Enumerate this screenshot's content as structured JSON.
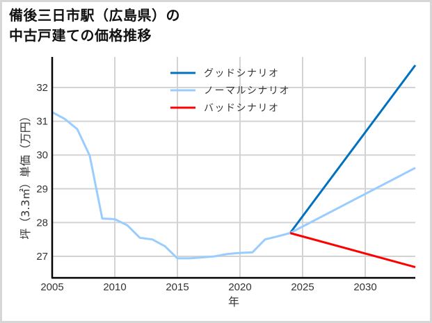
{
  "title": "備後三日市駅（広島県）の\n中古戸建ての価格推移",
  "chart_data": {
    "type": "line",
    "title": "備後三日市駅（広島県）の中古戸建ての価格推移",
    "xlabel": "年",
    "ylabel": "坪（3.3㎡）単価（万円）",
    "xlim": [
      2005,
      2034
    ],
    "ylim": [
      26.36,
      32.9
    ],
    "x_ticks": [
      2005,
      2010,
      2015,
      2020,
      2025,
      2030
    ],
    "y_ticks": [
      27,
      28,
      29,
      30,
      31,
      32
    ],
    "grid": true,
    "legend_position": "upper center",
    "series": [
      {
        "name": "ノーマルシナリオ",
        "role": "historical",
        "color": "#99ccff",
        "x": [
          2005,
          2006,
          2007,
          2008,
          2009,
          2010,
          2011,
          2012,
          2013,
          2014,
          2015,
          2016,
          2017,
          2018,
          2019,
          2020,
          2021,
          2022,
          2023,
          2024
        ],
        "values": [
          31.27,
          31.07,
          30.77,
          29.98,
          28.12,
          28.1,
          27.92,
          27.55,
          27.5,
          27.3,
          26.94,
          26.94,
          26.97,
          27.0,
          27.07,
          27.1,
          27.12,
          27.5,
          27.59,
          27.69
        ]
      },
      {
        "name": "グッドシナリオ",
        "color": "#0070c0",
        "x": [
          2024,
          2034
        ],
        "values": [
          27.69,
          32.66
        ]
      },
      {
        "name": "ノーマルシナリオ",
        "color": "#99ccff",
        "x": [
          2024,
          2034
        ],
        "values": [
          27.69,
          29.62
        ]
      },
      {
        "name": "バッドシナリオ",
        "color": "#ff0000",
        "x": [
          2024,
          2034
        ],
        "values": [
          27.69,
          26.68
        ]
      }
    ],
    "legend": [
      {
        "label": "グッドシナリオ",
        "color": "#0070c0"
      },
      {
        "label": "ノーマルシナリオ",
        "color": "#99ccff"
      },
      {
        "label": "バッドシナリオ",
        "color": "#ff0000"
      }
    ]
  }
}
